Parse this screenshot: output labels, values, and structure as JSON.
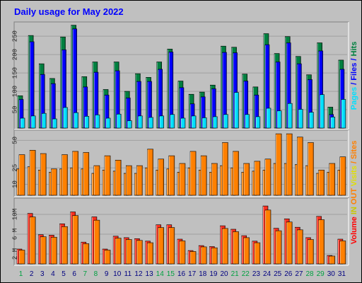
{
  "colors": {
    "hits": "#008040",
    "files": "#0000ff",
    "pages": "#00e0ff",
    "visits": "#ff8000",
    "sites": "#ff8000",
    "kbytes_fill": "#ff3020",
    "title": "#0000ff",
    "weekday": "#000080",
    "weekend": "#00a040",
    "grid": "#a0a0a0",
    "panel_bg": "#c0c0c0"
  },
  "chart_data": {
    "type": "bar",
    "title": "Daily usage for May 2022",
    "x": [
      "1",
      "2",
      "3",
      "4",
      "5",
      "6",
      "7",
      "8",
      "9",
      "10",
      "11",
      "12",
      "13",
      "14",
      "15",
      "16",
      "17",
      "18",
      "19",
      "20",
      "21",
      "22",
      "23",
      "24",
      "25",
      "26",
      "27",
      "28",
      "29",
      "30",
      "31"
    ],
    "weekend_days": [
      "1",
      "7",
      "8",
      "14",
      "15",
      "21",
      "22",
      "28",
      "29"
    ],
    "panels": [
      {
        "name": "hits_files_pages",
        "ylim": [
          0,
          285
        ],
        "yticks": [
          "50",
          "100",
          "150",
          "200",
          "250"
        ],
        "legend": [
          "Pages",
          "Files",
          "Hits"
        ],
        "series": [
          {
            "name": "Hits",
            "values": [
              88,
              252,
              175,
              135,
              248,
              280,
              140,
              180,
              105,
              180,
              100,
              148,
              138,
              180,
              215,
              128,
              92,
              98,
              117,
              223,
              220,
              147,
              112,
              257,
              203,
              249,
              195,
              145,
              232,
              57,
              185
            ]
          },
          {
            "name": "Files",
            "values": [
              78,
              235,
              146,
              121,
              213,
              270,
              112,
              152,
              90,
              156,
              82,
              127,
              127,
              160,
              207,
              110,
              66,
              85,
              107,
              206,
              205,
              128,
              90,
              227,
              180,
              232,
              175,
              132,
              210,
              37,
              160
            ]
          },
          {
            "name": "Pages",
            "values": [
              27,
              33,
              40,
              25,
              56,
              42,
              32,
              36,
              27,
              38,
              20,
              33,
              29,
              33,
              37,
              27,
              33,
              28,
              31,
              37,
              97,
              37,
              31,
              54,
              47,
              67,
              51,
              43,
              91,
              30,
              78
            ]
          }
        ]
      },
      {
        "name": "visits_sites",
        "ylim": [
          0,
          58
        ],
        "yticks": [
          "10",
          "25",
          "50"
        ],
        "legend": [
          "Visits",
          "Sites"
        ],
        "series": [
          {
            "name": "Visits",
            "values": [
              37,
              41,
              38,
              24,
              37,
              40,
              39,
              27,
              36,
              32,
              27,
              27,
              42,
              33,
              36,
              29,
              40,
              36,
              29,
              48,
              40,
              29,
              31,
              33,
              56,
              56,
              53,
              48,
              23,
              29,
              35
            ]
          },
          {
            "name": "Sites",
            "values": [
              24,
              26,
              23,
              21,
              24,
              25,
              24,
              20,
              23,
              22,
              20,
              20,
              25,
              23,
              24,
              21,
              25,
              23,
              21,
              27,
              25,
              21,
              22,
              23,
              29,
              29,
              28,
              27,
              20,
              21,
              23
            ]
          }
        ]
      },
      {
        "name": "volume",
        "ylim": [
          0,
          13
        ],
        "yticks": [
          "2 M",
          "6 M",
          "10M"
        ],
        "legend": [
          "Volume",
          "IN",
          "OUT"
        ],
        "series": [
          {
            "name": "Volume",
            "values": [
              3.0,
              10.2,
              5.9,
              5.8,
              8.1,
              10.5,
              4.4,
              9.5,
              3.0,
              5.6,
              5.3,
              5.1,
              4.6,
              7.9,
              7.9,
              5.0,
              2.7,
              3.7,
              3.5,
              7.7,
              7.0,
              5.7,
              4.6,
              11.7,
              7.2,
              9.1,
              7.4,
              5.3,
              9.6,
              1.7,
              5.0
            ]
          }
        ]
      }
    ]
  }
}
